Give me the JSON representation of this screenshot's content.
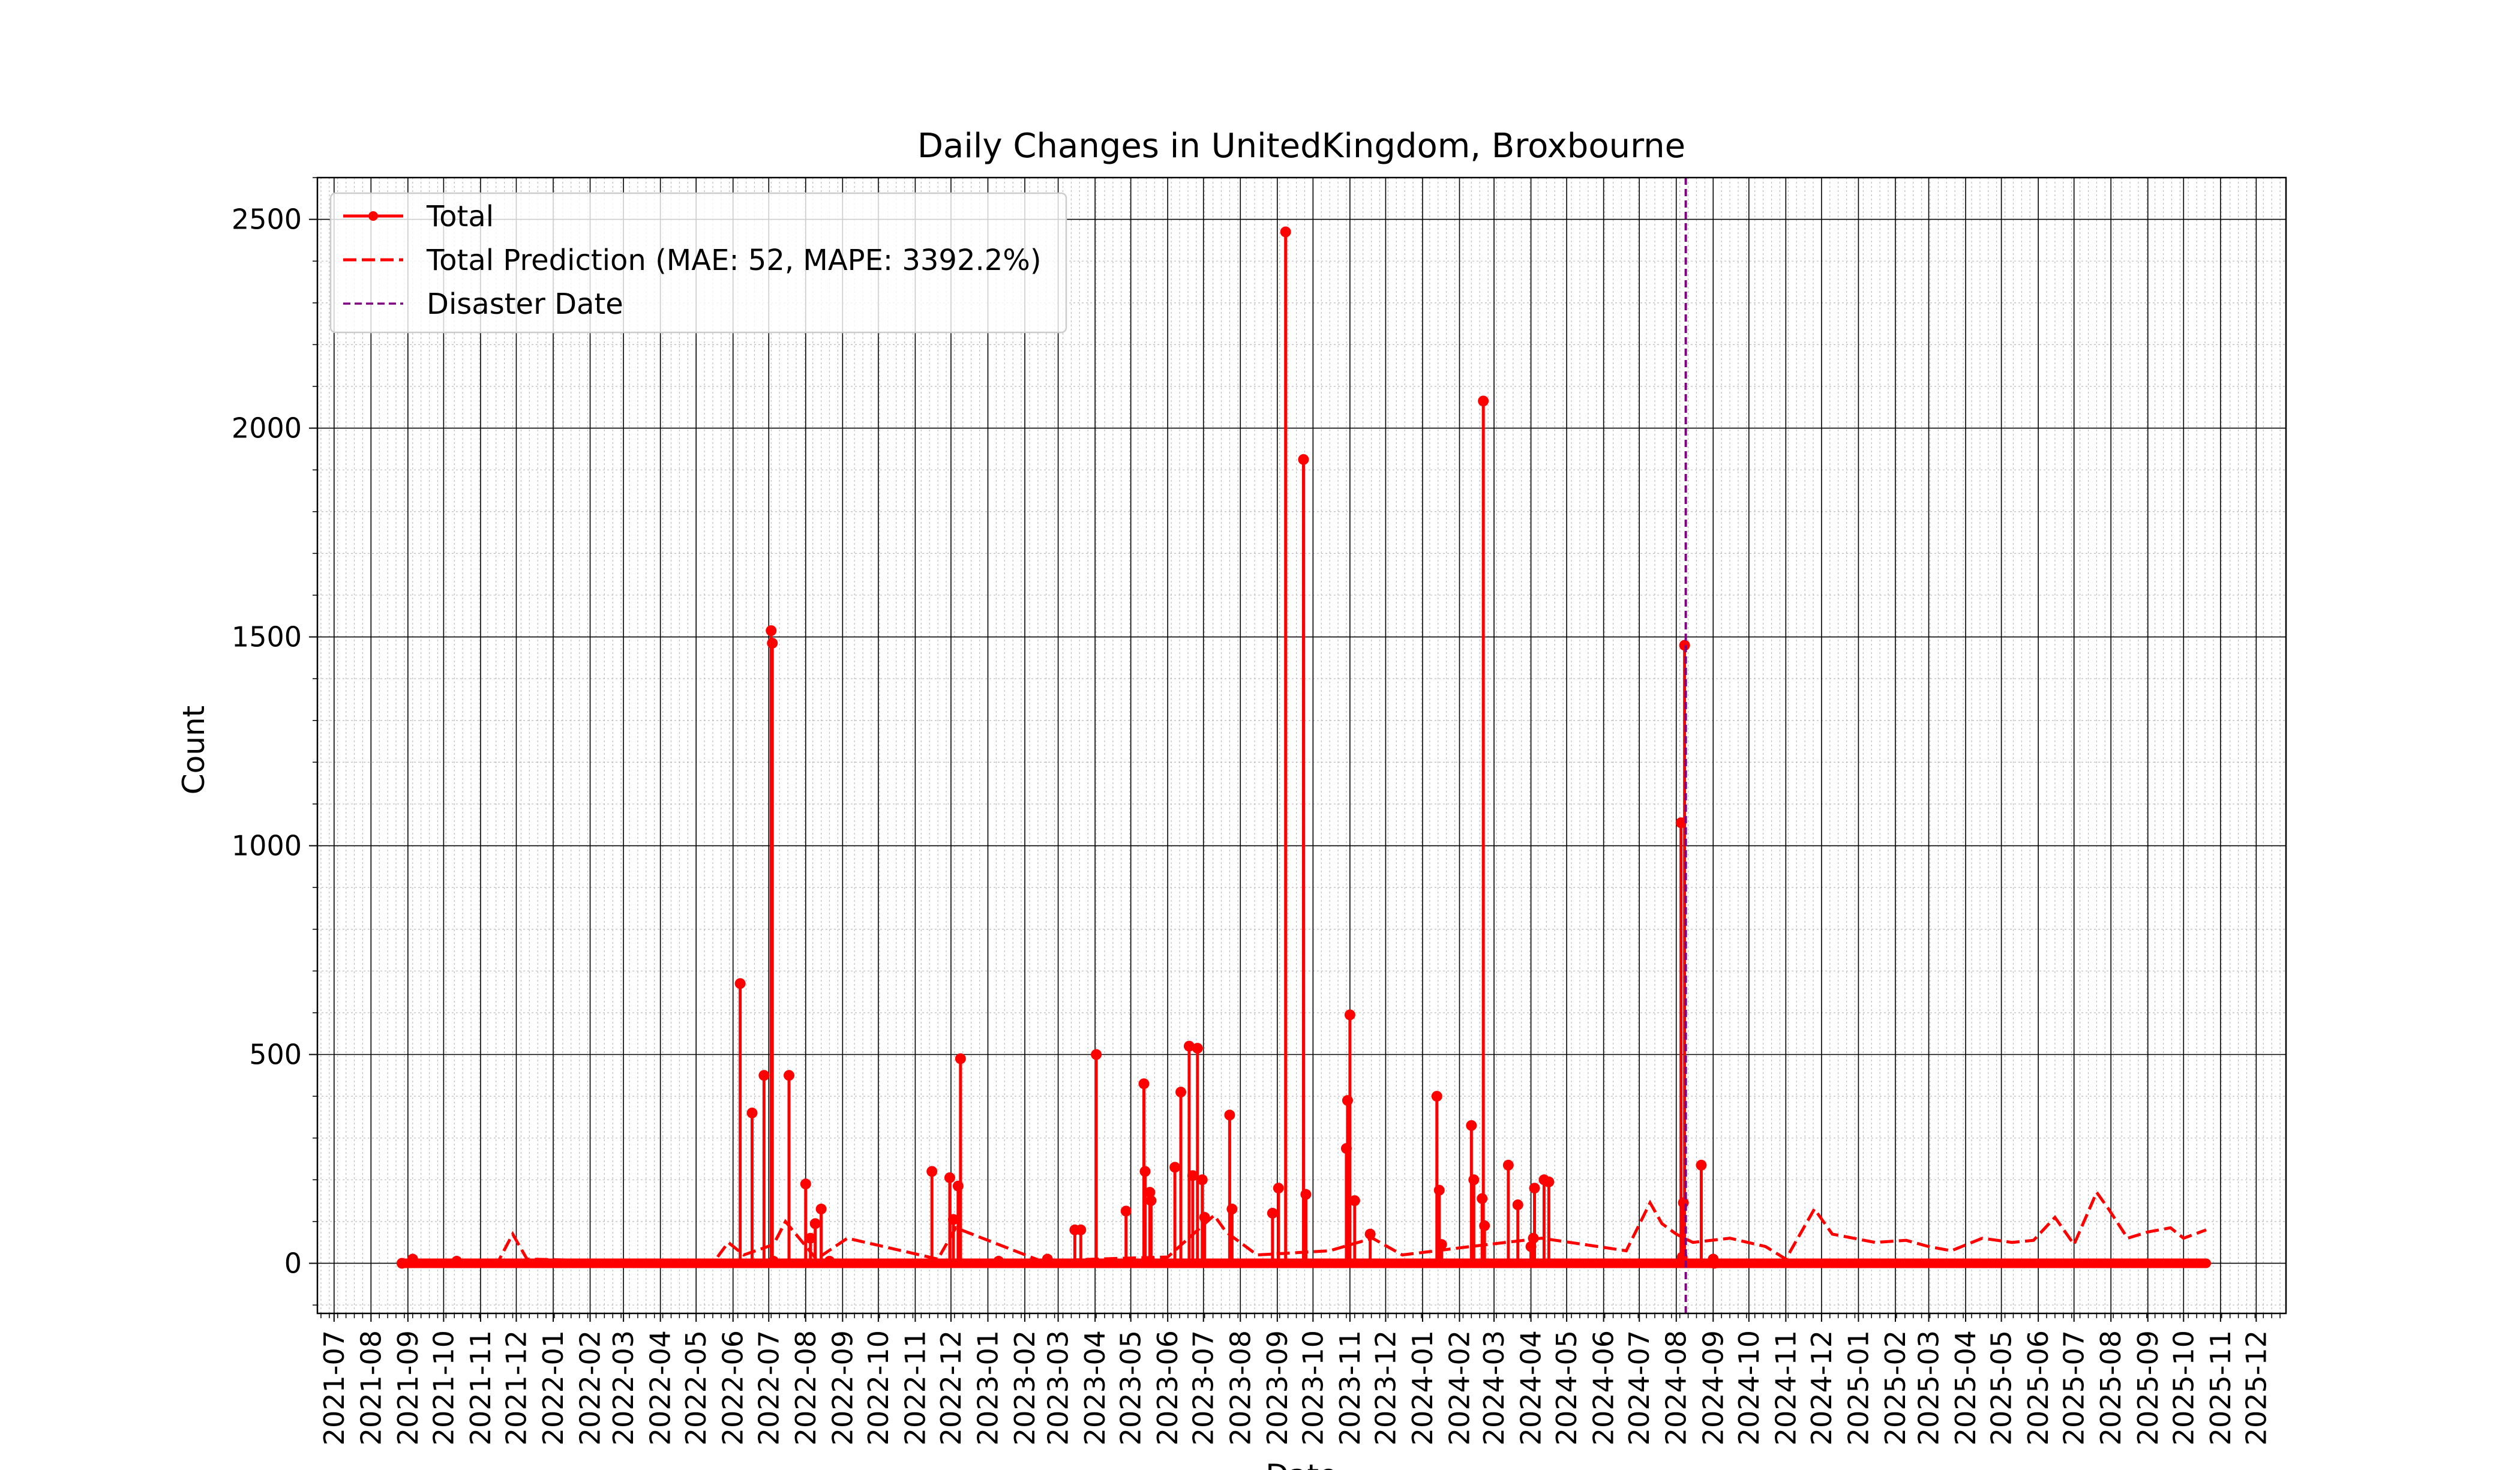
{
  "chart_data": {
    "type": "line",
    "title": "Daily Changes in UnitedKingdom, Broxbourne",
    "xlabel": "Date",
    "ylabel": "Count",
    "ylim": [
      -120,
      2600
    ],
    "xlim": [
      "2021-06-17",
      "2025-12-26"
    ],
    "y_ticks": [
      0,
      500,
      1000,
      1500,
      2000,
      2500
    ],
    "x_ticks": [
      "2021-07",
      "2021-08",
      "2021-09",
      "2021-10",
      "2021-11",
      "2021-12",
      "2022-01",
      "2022-02",
      "2022-03",
      "2022-04",
      "2022-05",
      "2022-06",
      "2022-07",
      "2022-08",
      "2022-09",
      "2022-10",
      "2022-11",
      "2022-12",
      "2023-01",
      "2023-02",
      "2023-03",
      "2023-04",
      "2023-05",
      "2023-06",
      "2023-07",
      "2023-08",
      "2023-09",
      "2023-10",
      "2023-11",
      "2023-12",
      "2024-01",
      "2024-02",
      "2024-03",
      "2024-04",
      "2024-05",
      "2024-06",
      "2024-07",
      "2024-08",
      "2024-09",
      "2024-10",
      "2024-11",
      "2024-12",
      "2025-01",
      "2025-02",
      "2025-03",
      "2025-04",
      "2025-05",
      "2025-06",
      "2025-07",
      "2025-08",
      "2025-09",
      "2025-10",
      "2025-11",
      "2025-12"
    ],
    "grid": true,
    "legend_position": "top-left",
    "colors": {
      "total": "#ff0000",
      "prediction": "#ff0000",
      "disaster": "#800080"
    },
    "series": [
      {
        "name": "Total",
        "style": "solid line with dot markers",
        "x": [
          "2021-08-27",
          "2021-09-05",
          "2021-10-12",
          "2022-06-07",
          "2022-06-17",
          "2022-06-27",
          "2022-07-03",
          "2022-07-04",
          "2022-07-05",
          "2022-07-18",
          "2022-08-01",
          "2022-08-05",
          "2022-08-09",
          "2022-08-14",
          "2022-08-21",
          "2022-11-15",
          "2022-11-30",
          "2022-12-03",
          "2022-12-07",
          "2022-12-09",
          "2023-01-10",
          "2023-02-20",
          "2023-03-15",
          "2023-03-20",
          "2023-04-02",
          "2023-04-27",
          "2023-05-12",
          "2023-05-13",
          "2023-05-17",
          "2023-05-18",
          "2023-06-07",
          "2023-06-12",
          "2023-06-19",
          "2023-06-22",
          "2023-06-26",
          "2023-06-30",
          "2023-07-02",
          "2023-07-23",
          "2023-07-25",
          "2023-08-28",
          "2023-09-02",
          "2023-09-08",
          "2023-09-23",
          "2023-09-25",
          "2023-10-29",
          "2023-10-30",
          "2023-11-01",
          "2023-11-05",
          "2023-11-18",
          "2024-01-13",
          "2024-01-15",
          "2024-01-17",
          "2024-02-11",
          "2024-02-13",
          "2024-02-20",
          "2024-02-21",
          "2024-02-22",
          "2024-03-13",
          "2024-03-21",
          "2024-04-01",
          "2024-04-03",
          "2024-04-04",
          "2024-04-12",
          "2024-04-16",
          "2024-08-05",
          "2024-08-06",
          "2024-08-07",
          "2024-08-08",
          "2024-08-22",
          "2024-09-01",
          "2024-09-02"
        ],
        "values": [
          0,
          10,
          5,
          670,
          360,
          450,
          1515,
          1485,
          5,
          450,
          190,
          60,
          95,
          130,
          5,
          220,
          205,
          105,
          185,
          490,
          5,
          10,
          80,
          80,
          500,
          125,
          430,
          220,
          170,
          150,
          230,
          410,
          520,
          210,
          515,
          200,
          110,
          355,
          130,
          120,
          180,
          2470,
          1925,
          165,
          275,
          390,
          595,
          150,
          70,
          400,
          175,
          45,
          330,
          200,
          155,
          2065,
          90,
          235,
          140,
          40,
          60,
          180,
          200,
          195,
          1055,
          15,
          145,
          1480,
          235,
          10,
          0
        ],
        "baseline": 0,
        "baseline_until": "2025-10-20"
      },
      {
        "name": "Total Prediction (MAE: 52, MAPE: 3392.2%)",
        "style": "dashed line",
        "x": [
          "2021-08-25",
          "2021-11-15",
          "2021-11-28",
          "2021-12-10",
          "2022-05-15",
          "2022-05-28",
          "2022-06-10",
          "2022-07-05",
          "2022-07-15",
          "2022-08-10",
          "2022-09-05",
          "2022-11-20",
          "2022-12-05",
          "2023-02-15",
          "2023-04-01",
          "2023-06-01",
          "2023-07-10",
          "2023-07-20",
          "2023-08-15",
          "2023-10-15",
          "2023-11-20",
          "2023-12-15",
          "2024-02-10",
          "2024-04-10",
          "2024-06-20",
          "2024-07-10",
          "2024-07-20",
          "2024-08-01",
          "2024-08-15",
          "2024-09-15",
          "2024-10-15",
          "2024-11-01",
          "2024-11-25",
          "2024-12-10",
          "2025-01-15",
          "2025-02-10",
          "2025-03-01",
          "2025-03-20",
          "2025-04-15",
          "2025-05-10",
          "2025-05-28",
          "2025-06-15",
          "2025-07-01",
          "2025-07-20",
          "2025-07-30",
          "2025-08-15",
          "2025-09-01",
          "2025-09-20",
          "2025-10-01",
          "2025-10-20"
        ],
        "values": [
          0,
          0,
          70,
          10,
          0,
          50,
          20,
          45,
          100,
          10,
          60,
          10,
          85,
          5,
          10,
          15,
          115,
          75,
          20,
          30,
          60,
          20,
          40,
          60,
          30,
          145,
          95,
          70,
          50,
          60,
          40,
          10,
          130,
          70,
          50,
          55,
          40,
          30,
          60,
          50,
          55,
          110,
          45,
          170,
          130,
          60,
          75,
          85,
          60,
          80
        ]
      },
      {
        "name": "Disaster Date",
        "style": "vertical dashed line",
        "x": [
          "2024-08-09"
        ]
      }
    ]
  }
}
